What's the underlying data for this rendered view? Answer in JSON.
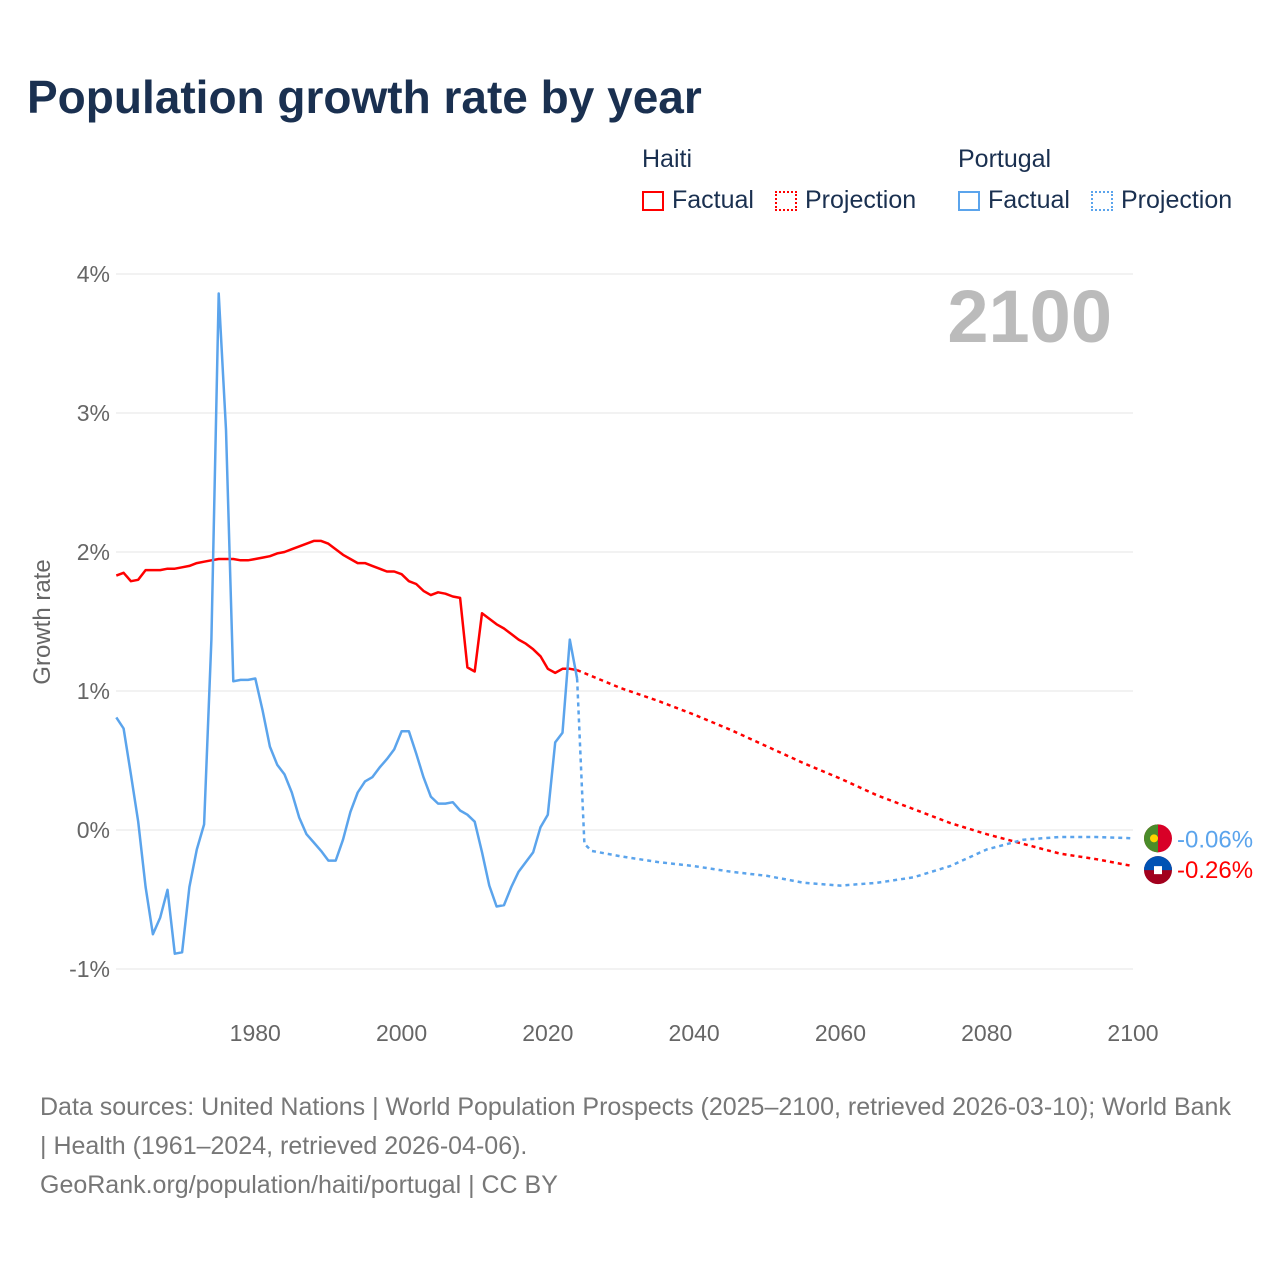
{
  "title": "Population growth rate by year",
  "legend": {
    "haiti": "Haiti",
    "portugal": "Portugal",
    "factual": "Factual",
    "projection": "Projection"
  },
  "colors": {
    "haiti": "#ff0000",
    "portugal": "#5ba4ec"
  },
  "year_label": "2100",
  "source": {
    "line1": "Data sources: United Nations | World Population Prospects (2025–2100, retrieved 2026-03-10); World Bank | Health (1961–2024, retrieved 2026-04-06).",
    "line2": "GeoRank.org/population/haiti/portugal | CC BY"
  },
  "chart_data": {
    "type": "line",
    "title": "Population growth rate by year",
    "xlabel": "",
    "ylabel": "Growth rate",
    "xlim": [
      1961,
      2100
    ],
    "ylim": [
      -1.1,
      4.1
    ],
    "xticks": [
      1980,
      2000,
      2020,
      2040,
      2060,
      2080,
      2100
    ],
    "yticks": [
      {
        "v": -1,
        "label": "-1%"
      },
      {
        "v": 0,
        "label": "0%"
      },
      {
        "v": 1,
        "label": "1%"
      },
      {
        "v": 2,
        "label": "2%"
      },
      {
        "v": 3,
        "label": "3%"
      },
      {
        "v": 4,
        "label": "4%"
      }
    ],
    "end_labels": {
      "portugal": "-0.06%",
      "haiti": "-0.26%"
    },
    "series": [
      {
        "name": "Haiti",
        "kind": "factual",
        "start": 1961,
        "values": [
          1.83,
          1.85,
          1.79,
          1.8,
          1.87,
          1.87,
          1.87,
          1.88,
          1.88,
          1.89,
          1.9,
          1.92,
          1.93,
          1.94,
          1.95,
          1.95,
          1.95,
          1.94,
          1.94,
          1.95,
          1.96,
          1.97,
          1.99,
          2.0,
          2.02,
          2.04,
          2.06,
          2.08,
          2.08,
          2.06,
          2.02,
          1.98,
          1.95,
          1.92,
          1.92,
          1.9,
          1.88,
          1.86,
          1.86,
          1.84,
          1.79,
          1.77,
          1.72,
          1.69,
          1.71,
          1.7,
          1.68,
          1.67,
          1.17,
          1.14,
          1.56,
          1.52,
          1.48,
          1.45,
          1.41,
          1.37,
          1.34,
          1.3,
          1.25,
          1.16,
          1.13,
          1.16,
          1.16,
          1.15
        ]
      },
      {
        "name": "Haiti",
        "kind": "projection",
        "x": [
          2024,
          2030,
          2035,
          2040,
          2045,
          2050,
          2055,
          2060,
          2065,
          2070,
          2075,
          2080,
          2085,
          2090,
          2095,
          2100
        ],
        "values": [
          1.15,
          1.02,
          0.93,
          0.83,
          0.72,
          0.6,
          0.48,
          0.37,
          0.25,
          0.15,
          0.05,
          -0.03,
          -0.1,
          -0.17,
          -0.21,
          -0.26
        ]
      },
      {
        "name": "Portugal",
        "kind": "factual",
        "start": 1961,
        "values": [
          0.81,
          0.73,
          0.4,
          0.06,
          -0.41,
          -0.75,
          -0.63,
          -0.43,
          -0.89,
          -0.88,
          -0.41,
          -0.14,
          0.04,
          1.37,
          3.86,
          2.88,
          1.07,
          1.08,
          1.08,
          1.09,
          0.86,
          0.6,
          0.47,
          0.4,
          0.27,
          0.09,
          -0.03,
          -0.09,
          -0.15,
          -0.22,
          -0.22,
          -0.07,
          0.13,
          0.27,
          0.35,
          0.38,
          0.45,
          0.51,
          0.58,
          0.71,
          0.71,
          0.55,
          0.38,
          0.24,
          0.19,
          0.19,
          0.2,
          0.14,
          0.11,
          0.06,
          -0.16,
          -0.4,
          -0.55,
          -0.54,
          -0.41,
          -0.3,
          -0.23,
          -0.16,
          0.02,
          0.11,
          0.63,
          0.7,
          1.37,
          1.09
        ]
      },
      {
        "name": "Portugal",
        "kind": "projection",
        "x": [
          2024,
          2025,
          2026,
          2030,
          2035,
          2040,
          2045,
          2050,
          2055,
          2060,
          2065,
          2070,
          2075,
          2080,
          2085,
          2090,
          2095,
          2100
        ],
        "values": [
          1.09,
          -0.1,
          -0.15,
          -0.19,
          -0.23,
          -0.26,
          -0.3,
          -0.33,
          -0.38,
          -0.4,
          -0.38,
          -0.34,
          -0.26,
          -0.14,
          -0.07,
          -0.05,
          -0.05,
          -0.06
        ]
      }
    ]
  }
}
